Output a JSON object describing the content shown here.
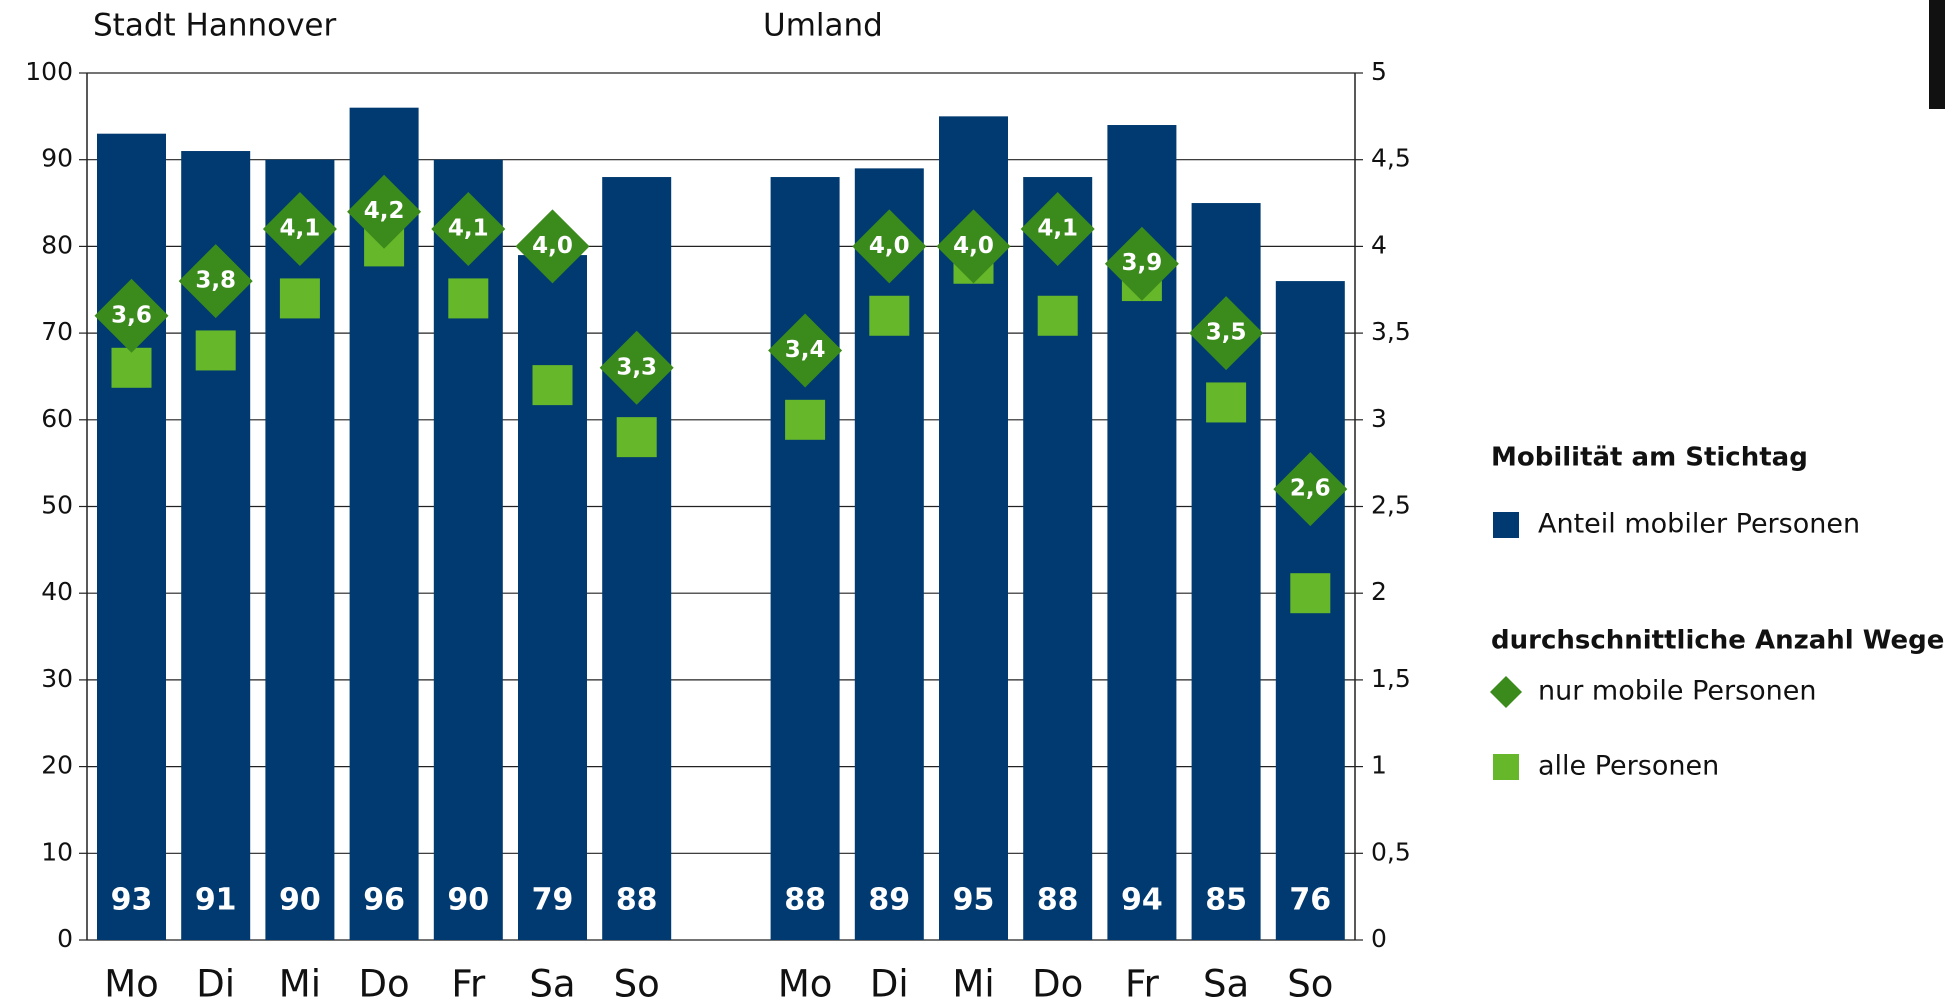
{
  "chart_data": {
    "type": "bar",
    "group_labels": [
      "Stadt Hannover",
      "Umland"
    ],
    "legend_titles": [
      "Mobilität am Stichtag",
      "durchschnittliche Anzahl Wege"
    ],
    "categories": [
      "Mo",
      "Di",
      "Mi",
      "Do",
      "Fr",
      "Sa",
      "So",
      null,
      "Mo",
      "Di",
      "Mi",
      "Do",
      "Fr",
      "Sa",
      "So"
    ],
    "series": [
      {
        "name": "Anteil mobiler Personen",
        "color": "#003a70",
        "marker": "bar",
        "values": [
          93,
          91,
          90,
          96,
          90,
          79,
          88,
          null,
          88,
          89,
          95,
          88,
          94,
          85,
          76
        ]
      },
      {
        "name": "nur mobile Personen",
        "color": "#3b8a1c",
        "marker": "diamond",
        "axis": "y2",
        "values": [
          3.6,
          3.8,
          4.1,
          4.2,
          4.1,
          4.0,
          3.3,
          null,
          3.4,
          4.0,
          4.0,
          4.1,
          3.9,
          3.5,
          2.6
        ],
        "value_labels": [
          "3,6",
          "3,8",
          "4,1",
          "4,2",
          "4,1",
          "4,0",
          "3,3",
          null,
          "3,4",
          "4,0",
          "4,0",
          "4,1",
          "3,9",
          "3,5",
          "2,6"
        ]
      },
      {
        "name": "alle Personen",
        "color": "#66b82a",
        "marker": "square",
        "axis": "y2",
        "values": [
          3.3,
          3.4,
          3.7,
          4.0,
          3.7,
          3.2,
          2.9,
          null,
          3.0,
          3.6,
          3.9,
          3.6,
          3.8,
          3.1,
          2.0
        ]
      }
    ],
    "ylim": [
      0,
      100
    ],
    "yticks": [
      0,
      10,
      20,
      30,
      40,
      50,
      60,
      70,
      80,
      90,
      100
    ],
    "y2lim": [
      0,
      5
    ],
    "y2ticks": [
      0,
      {
        "value": 0.5,
        "label": "0,5"
      },
      1,
      {
        "value": 1.5,
        "label": "1,5"
      },
      2,
      {
        "value": 2.5,
        "label": "2,5"
      },
      3,
      {
        "value": 3.5,
        "label": "3,5"
      },
      4,
      {
        "value": 4.5,
        "label": "4,5"
      },
      5
    ],
    "grid": true
  }
}
